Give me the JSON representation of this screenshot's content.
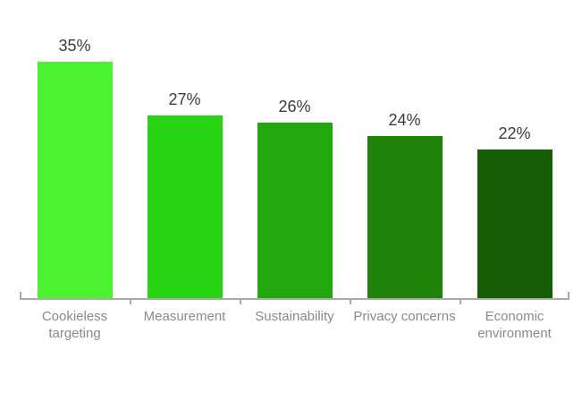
{
  "chart_data": {
    "type": "bar",
    "categories": [
      "Cookieless targeting",
      "Measurement",
      "Sustainability",
      "Privacy concerns",
      "Economic environment"
    ],
    "values": [
      35,
      27,
      26,
      24,
      22
    ],
    "value_labels": [
      "35%",
      "27%",
      "26%",
      "24%",
      "22%"
    ],
    "value_suffix": "%",
    "title": "",
    "xlabel": "",
    "ylabel": "",
    "ylim": [
      0,
      35
    ],
    "grid": false,
    "legend": "none",
    "bar_colors": [
      "#4bf22f",
      "#26d411",
      "#23a70e",
      "#1e8309",
      "#155e06"
    ],
    "axis_color": "#a9a9a9",
    "value_label_color": "#3b3b3b",
    "category_label_color": "#8a8a8a",
    "background": "#ffffff"
  }
}
